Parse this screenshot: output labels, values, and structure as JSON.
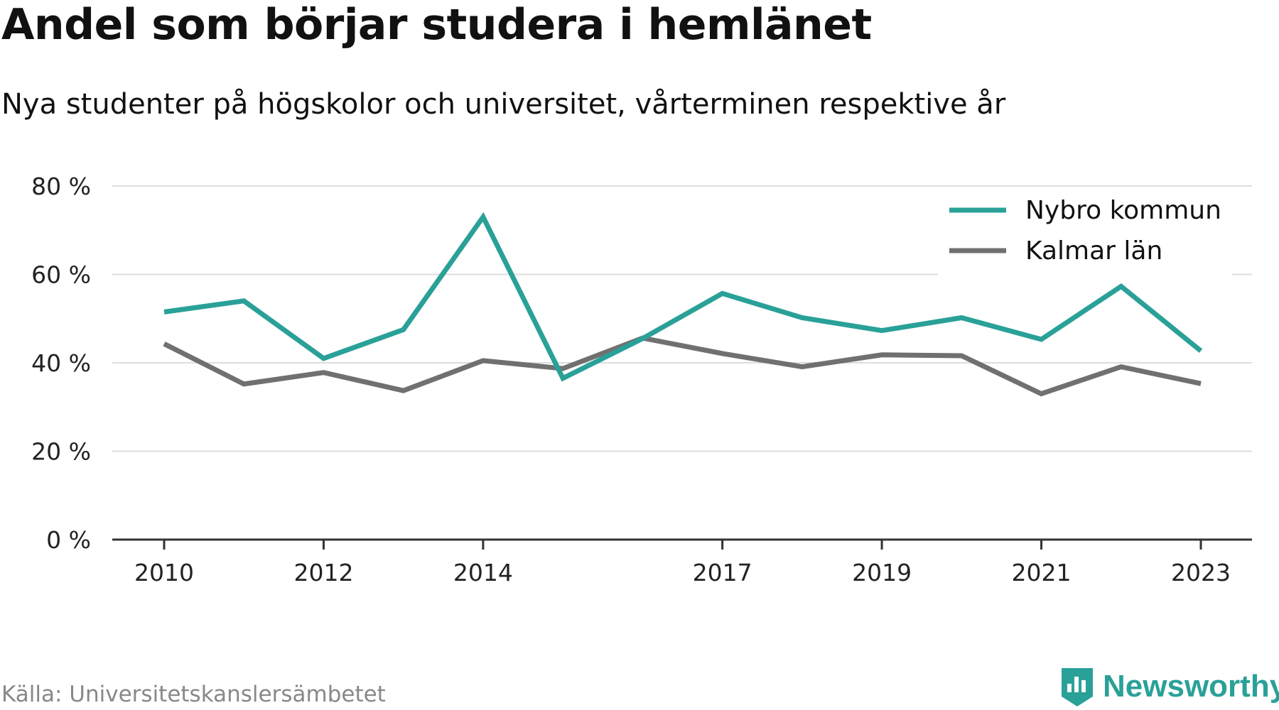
{
  "header": {
    "title": "Andel som börjar studera i hemlänet",
    "subtitle": "Nya studenter på högskolor och universitet, vårterminen respektive år"
  },
  "footer": {
    "source": "Källa: Universitetskanslersämbetet",
    "brand": "Newsworthy",
    "brand_icon": "bar-chart-badge-icon"
  },
  "colors": {
    "accent": "#2aa198",
    "gray_series": "#707070",
    "grid": "#dddddd",
    "axis": "#333333",
    "text": "#222222"
  },
  "chart_data": {
    "type": "line",
    "x": [
      2010,
      2011,
      2012,
      2013,
      2014,
      2015,
      2016,
      2017,
      2018,
      2019,
      2020,
      2021,
      2022,
      2023
    ],
    "x_tick_labels": [
      "2010",
      "2012",
      "2014",
      "2017",
      "2019",
      "2021",
      "2023"
    ],
    "y_ticks": [
      0,
      20,
      40,
      60,
      80
    ],
    "y_tick_labels": [
      "0 %",
      "20 %",
      "40 %",
      "60 %",
      "80 %"
    ],
    "ylim": [
      0,
      80
    ],
    "grid": true,
    "legend_position": "top-right",
    "series": [
      {
        "name": "Nybro kommun",
        "color": "#2aa198",
        "values": [
          51.5,
          54.0,
          41.0,
          47.5,
          73.0,
          36.5,
          45.5,
          55.7,
          50.2,
          47.3,
          50.2,
          45.3,
          57.3,
          42.7
        ]
      },
      {
        "name": "Kalmar län",
        "color": "#707070",
        "values": [
          44.3,
          35.2,
          37.8,
          33.7,
          40.5,
          38.7,
          45.6,
          42.1,
          39.1,
          41.8,
          41.6,
          33.0,
          39.1,
          35.3
        ]
      }
    ]
  }
}
